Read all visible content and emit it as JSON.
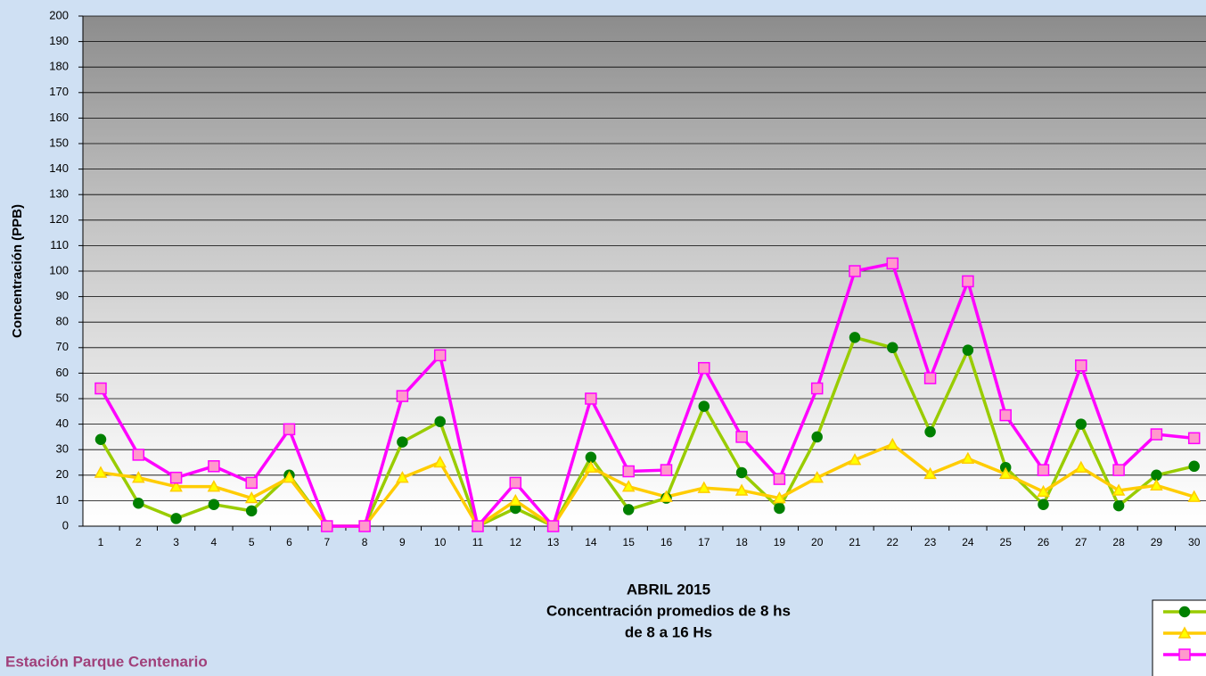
{
  "chart_data": {
    "type": "line",
    "title": "ABRIL 2015",
    "subtitle": [
      "Concentración promedios de 8 hs",
      "de 8 a 16 Hs"
    ],
    "station": "Estación Parque Centenario",
    "y_label": "Concentración (PPB)",
    "categories": [
      "1",
      "2",
      "3",
      "4",
      "5",
      "6",
      "7",
      "8",
      "9",
      "10",
      "11",
      "12",
      "13",
      "14",
      "15",
      "16",
      "17",
      "18",
      "19",
      "20",
      "21",
      "22",
      "23",
      "24",
      "25",
      "26",
      "27",
      "28",
      "29",
      "30"
    ],
    "series": [
      {
        "color": "#99cc00",
        "marker": "circle",
        "marker_color": "#008000",
        "values": [
          34,
          9,
          3,
          8.5,
          6,
          20,
          0,
          0,
          33,
          41,
          0,
          7,
          0,
          27,
          6.5,
          11,
          47,
          21,
          7,
          35,
          74,
          70,
          37,
          69,
          23,
          8.5,
          40,
          8,
          20,
          23.5
        ]
      },
      {
        "color": "#ffcc00",
        "marker": "triangle",
        "marker_color": "#ffff00",
        "values": [
          21,
          19,
          15.5,
          15.5,
          11,
          19,
          0,
          0,
          19,
          25,
          0,
          10,
          0,
          23,
          15.5,
          11.5,
          15,
          14,
          11,
          19,
          26,
          32,
          20.5,
          26.5,
          20.5,
          13.5,
          23,
          14,
          16,
          11.5
        ]
      },
      {
        "color": "#ff00ff",
        "marker": "square",
        "marker_color": "#ff99cc",
        "values": [
          54,
          28,
          19,
          23.5,
          17,
          38,
          0,
          0,
          51,
          67,
          0,
          17,
          0,
          50,
          21.5,
          22,
          62,
          35,
          18.5,
          54,
          100,
          103,
          58,
          96,
          43.5,
          22,
          63,
          22,
          36,
          34.5
        ]
      }
    ],
    "ylim": [
      0,
      200
    ],
    "yticks": [
      0,
      10,
      20,
      30,
      40,
      50,
      60,
      70,
      80,
      90,
      100,
      110,
      120,
      130,
      140,
      150,
      160,
      170,
      180,
      190,
      200
    ],
    "grid": true
  }
}
